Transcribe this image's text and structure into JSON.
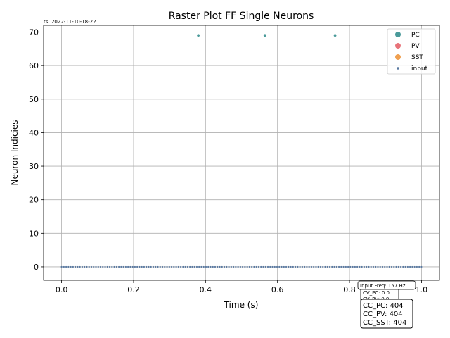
{
  "chart_data": {
    "type": "scatter",
    "title": "Raster Plot FF Single Neurons",
    "xlabel": "Time (s)",
    "ylabel": "Neuron Indicies",
    "xlim": [
      -0.05,
      1.05
    ],
    "ylim": [
      -4,
      72
    ],
    "xticks": [
      0.0,
      0.2,
      0.4,
      0.6,
      0.8,
      1.0
    ],
    "xtick_labels": [
      "0.0",
      "0.2",
      "0.4",
      "0.6",
      "0.8",
      "1.0"
    ],
    "yticks": [
      0,
      10,
      20,
      30,
      40,
      50,
      60,
      70
    ],
    "ytick_labels": [
      "0",
      "10",
      "20",
      "30",
      "40",
      "50",
      "60",
      "70"
    ],
    "grid": true,
    "legend_position": "top-right",
    "timestamp": "ts: 2022-11-10-18-22",
    "series": [
      {
        "name": "PC",
        "color": "#4a9a9a",
        "marker_size": "small",
        "points": [
          {
            "x": 0.38,
            "y": 69
          },
          {
            "x": 0.565,
            "y": 69
          },
          {
            "x": 0.76,
            "y": 69
          }
        ]
      },
      {
        "name": "PV",
        "color": "#e8737a",
        "marker_size": "small",
        "points": []
      },
      {
        "name": "SST",
        "color": "#f0a050",
        "marker_size": "small",
        "points": []
      },
      {
        "name": "input",
        "color": "#5878a0",
        "marker_size": "tiny",
        "regular_train": {
          "y": 0,
          "start": 0.0,
          "end": 1.0,
          "rate_hz": 157
        }
      }
    ],
    "annotations": {
      "freq_box": "Input Freq: 157 Hz",
      "cv_lines": [
        "CV_PC: 0.0",
        "CV_PV: 0.0"
      ],
      "cc_lines": [
        "CC_PC: 404",
        "CC_PV: 404",
        "CC_SST: 404"
      ]
    }
  }
}
